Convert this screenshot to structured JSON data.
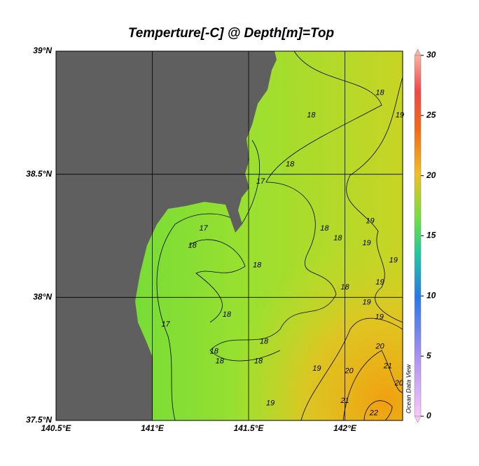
{
  "title": "Temperture[-C] @ Depth[m]=Top",
  "map": {
    "xlim": [
      140.5,
      142.3
    ],
    "ylim": [
      37.5,
      39
    ],
    "xticks": [
      {
        "value": 140.5,
        "label": "140.5°E"
      },
      {
        "value": 141,
        "label": "141°E"
      },
      {
        "value": 141.5,
        "label": "141.5°E"
      },
      {
        "value": 142,
        "label": "142°E"
      }
    ],
    "yticks": [
      {
        "value": 37.5,
        "label": "37.5°N"
      },
      {
        "value": 38,
        "label": "38°N"
      },
      {
        "value": 38.5,
        "label": "38.5°N"
      },
      {
        "value": 39,
        "label": "39°N"
      }
    ],
    "grid": true
  },
  "colorbar": {
    "lim": [
      0,
      30
    ],
    "ticks": [
      0,
      5,
      10,
      15,
      20,
      25,
      30
    ]
  },
  "contour_labels": [
    {
      "level": 18,
      "lon": 142.182,
      "lat": 38.83
    },
    {
      "level": 18,
      "lon": 141.825,
      "lat": 38.74
    },
    {
      "level": 19,
      "lon": 142.285,
      "lat": 38.74
    },
    {
      "level": 18,
      "lon": 141.715,
      "lat": 38.54
    },
    {
      "level": 17,
      "lon": 141.562,
      "lat": 38.47
    },
    {
      "level": 17,
      "lon": 141.266,
      "lat": 38.28
    },
    {
      "level": 18,
      "lon": 141.208,
      "lat": 38.21
    },
    {
      "level": 18,
      "lon": 141.894,
      "lat": 38.28
    },
    {
      "level": 18,
      "lon": 141.963,
      "lat": 38.24
    },
    {
      "level": 19,
      "lon": 142.131,
      "lat": 38.31
    },
    {
      "level": 19,
      "lon": 142.113,
      "lat": 38.22
    },
    {
      "level": 18,
      "lon": 141.544,
      "lat": 38.13
    },
    {
      "level": 19,
      "lon": 142.252,
      "lat": 38.15
    },
    {
      "level": 19,
      "lon": 142.182,
      "lat": 38.06
    },
    {
      "level": 18,
      "lon": 142.0,
      "lat": 38.04
    },
    {
      "level": 19,
      "lon": 142.113,
      "lat": 37.98
    },
    {
      "level": 18,
      "lon": 141.387,
      "lat": 37.93
    },
    {
      "level": 17,
      "lon": 141.069,
      "lat": 37.89
    },
    {
      "level": 19,
      "lon": 142.179,
      "lat": 37.92
    },
    {
      "level": 20,
      "lon": 142.182,
      "lat": 37.8
    },
    {
      "level": 18,
      "lon": 141.58,
      "lat": 37.82
    },
    {
      "level": 18,
      "lon": 141.321,
      "lat": 37.78
    },
    {
      "level": 18,
      "lon": 141.35,
      "lat": 37.74
    },
    {
      "level": 18,
      "lon": 141.551,
      "lat": 37.74
    },
    {
      "level": 19,
      "lon": 141.854,
      "lat": 37.71
    },
    {
      "level": 21,
      "lon": 142.223,
      "lat": 37.72
    },
    {
      "level": 20,
      "lon": 142.022,
      "lat": 37.7
    },
    {
      "level": 20,
      "lon": 142.281,
      "lat": 37.65
    },
    {
      "level": 21,
      "lon": 142.0,
      "lat": 37.58
    },
    {
      "level": 19,
      "lon": 141.613,
      "lat": 37.57
    },
    {
      "level": 22,
      "lon": 142.15,
      "lat": 37.53
    }
  ],
  "watermark": "Ocean Data View"
}
